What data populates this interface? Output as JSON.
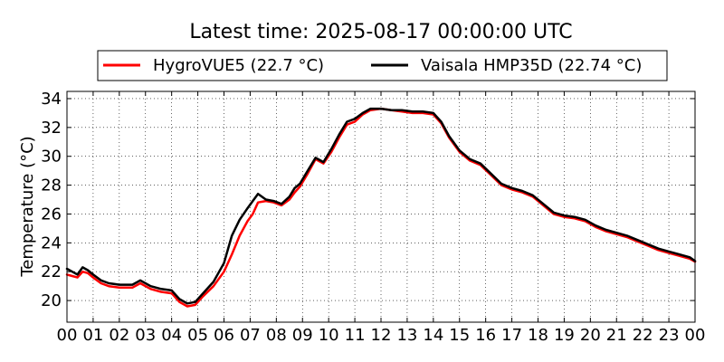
{
  "chart_data": {
    "type": "line",
    "title": "Latest time: 2025-08-17 00:00:00 UTC",
    "xlabel": "",
    "ylabel": "Temperature (°C)",
    "xlim": [
      0,
      24
    ],
    "ylim": [
      18.5,
      34.5
    ],
    "x_tick_values": [
      0,
      1,
      2,
      3,
      4,
      5,
      6,
      7,
      8,
      9,
      10,
      11,
      12,
      13,
      14,
      15,
      16,
      17,
      18,
      19,
      20,
      21,
      22,
      23,
      24
    ],
    "x_tick_labels": [
      "00",
      "01",
      "02",
      "03",
      "04",
      "05",
      "06",
      "07",
      "08",
      "09",
      "10",
      "11",
      "12",
      "13",
      "14",
      "15",
      "16",
      "17",
      "18",
      "19",
      "20",
      "21",
      "22",
      "23",
      "00"
    ],
    "y_tick_values": [
      20,
      22,
      24,
      26,
      28,
      30,
      32,
      34
    ],
    "y_tick_labels": [
      "20",
      "22",
      "24",
      "26",
      "28",
      "30",
      "32",
      "34"
    ],
    "grid": true,
    "legend_placement": "top-center",
    "series": [
      {
        "name": "HygroVUE5 (22.7 °C)",
        "color": "#ff0000",
        "x": [
          0,
          0.2,
          0.4,
          0.6,
          0.8,
          1.0,
          1.3,
          1.6,
          2.0,
          2.5,
          2.8,
          3.2,
          3.6,
          4.0,
          4.3,
          4.6,
          4.9,
          5.2,
          5.6,
          6.0,
          6.3,
          6.6,
          6.9,
          7.1,
          7.3,
          7.6,
          7.9,
          8.2,
          8.5,
          8.7,
          8.9,
          9.2,
          9.5,
          9.8,
          10.1,
          10.4,
          10.7,
          11.0,
          11.3,
          11.6,
          12.0,
          12.4,
          12.8,
          13.2,
          13.6,
          14.0,
          14.3,
          14.6,
          15.0,
          15.4,
          15.8,
          16.2,
          16.6,
          17.0,
          17.4,
          17.8,
          18.2,
          18.6,
          19.0,
          19.4,
          19.8,
          20.2,
          20.6,
          21.0,
          21.4,
          21.8,
          22.2,
          22.6,
          23.0,
          23.4,
          23.8,
          24.0
        ],
        "y": [
          21.8,
          21.7,
          21.6,
          22.0,
          21.9,
          21.6,
          21.2,
          21.0,
          20.9,
          20.9,
          21.2,
          20.8,
          20.6,
          20.5,
          19.9,
          19.6,
          19.7,
          20.3,
          21.0,
          22.0,
          23.2,
          24.5,
          25.5,
          26.0,
          26.8,
          26.9,
          26.8,
          26.6,
          27.0,
          27.5,
          27.9,
          28.8,
          29.8,
          29.5,
          30.3,
          31.3,
          32.2,
          32.4,
          32.9,
          33.2,
          33.3,
          33.2,
          33.1,
          33.0,
          33.0,
          32.9,
          32.3,
          31.3,
          30.3,
          29.7,
          29.4,
          28.7,
          28.0,
          27.7,
          27.5,
          27.2,
          26.6,
          26.0,
          25.8,
          25.7,
          25.5,
          25.1,
          24.8,
          24.6,
          24.4,
          24.1,
          23.8,
          23.5,
          23.3,
          23.1,
          22.9,
          22.7
        ]
      },
      {
        "name": "Vaisala HMP35D (22.74 °C)",
        "color": "#000000",
        "x": [
          0,
          0.2,
          0.4,
          0.6,
          0.8,
          1.0,
          1.3,
          1.6,
          2.0,
          2.5,
          2.8,
          3.2,
          3.6,
          4.0,
          4.3,
          4.6,
          4.9,
          5.2,
          5.6,
          6.0,
          6.3,
          6.6,
          6.9,
          7.1,
          7.3,
          7.6,
          7.9,
          8.2,
          8.5,
          8.7,
          8.9,
          9.2,
          9.5,
          9.8,
          10.1,
          10.4,
          10.7,
          11.0,
          11.3,
          11.6,
          12.0,
          12.4,
          12.8,
          13.2,
          13.6,
          14.0,
          14.3,
          14.6,
          15.0,
          15.4,
          15.8,
          16.2,
          16.6,
          17.0,
          17.4,
          17.8,
          18.2,
          18.6,
          19.0,
          19.4,
          19.8,
          20.2,
          20.6,
          21.0,
          21.4,
          21.8,
          22.2,
          22.6,
          23.0,
          23.4,
          23.8,
          24.0
        ],
        "y": [
          22.2,
          22.0,
          21.8,
          22.3,
          22.1,
          21.8,
          21.4,
          21.2,
          21.1,
          21.1,
          21.4,
          21.0,
          20.8,
          20.7,
          20.1,
          19.8,
          19.9,
          20.5,
          21.3,
          22.6,
          24.5,
          25.6,
          26.4,
          26.9,
          27.4,
          27.0,
          26.9,
          26.7,
          27.2,
          27.8,
          28.1,
          29.0,
          29.9,
          29.6,
          30.5,
          31.5,
          32.4,
          32.6,
          33.0,
          33.3,
          33.3,
          33.2,
          33.2,
          33.1,
          33.1,
          33.0,
          32.4,
          31.4,
          30.4,
          29.8,
          29.5,
          28.8,
          28.1,
          27.8,
          27.6,
          27.3,
          26.7,
          26.1,
          25.9,
          25.8,
          25.6,
          25.2,
          24.9,
          24.7,
          24.5,
          24.2,
          23.9,
          23.6,
          23.4,
          23.2,
          23.0,
          22.74
        ]
      }
    ]
  }
}
